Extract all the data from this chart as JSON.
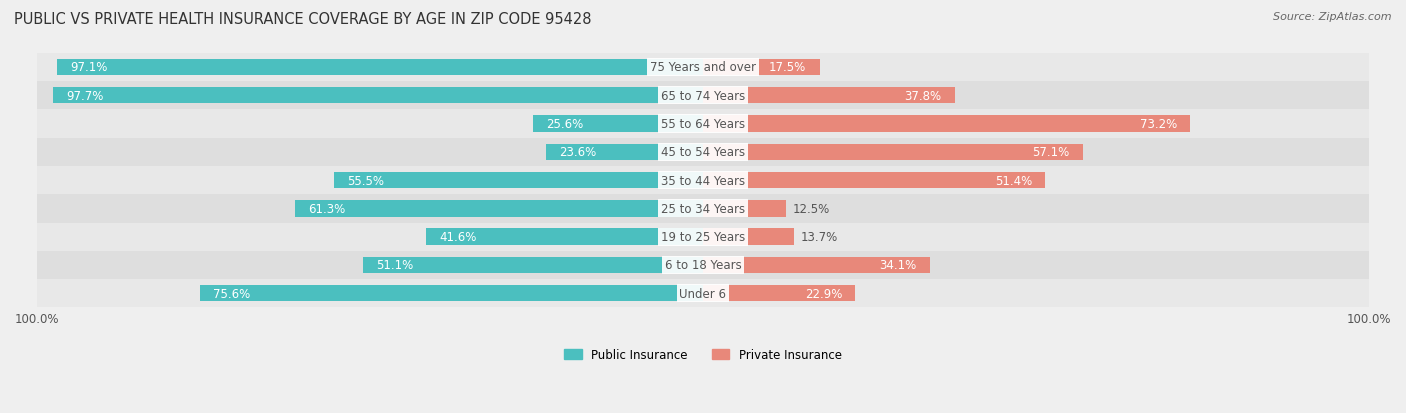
{
  "title": "PUBLIC VS PRIVATE HEALTH INSURANCE COVERAGE BY AGE IN ZIP CODE 95428",
  "source": "Source: ZipAtlas.com",
  "categories": [
    "Under 6",
    "6 to 18 Years",
    "19 to 25 Years",
    "25 to 34 Years",
    "35 to 44 Years",
    "45 to 54 Years",
    "55 to 64 Years",
    "65 to 74 Years",
    "75 Years and over"
  ],
  "public_values": [
    75.6,
    51.1,
    41.6,
    61.3,
    55.5,
    23.6,
    25.6,
    97.7,
    97.1
  ],
  "private_values": [
    22.9,
    34.1,
    13.7,
    12.5,
    51.4,
    57.1,
    73.2,
    37.8,
    17.5
  ],
  "public_color": "#4BBFBF",
  "private_color": "#E8887A",
  "background_color": "#efefef",
  "row_colors": [
    "#e8e8e8",
    "#dedede"
  ],
  "bar_height": 0.58,
  "max_value": 100.0,
  "title_fontsize": 10.5,
  "label_fontsize": 8.5,
  "source_fontsize": 8,
  "legend_fontsize": 8.5,
  "value_label_color_inside": "white",
  "value_label_color_outside": "#555555",
  "category_label_color": "#555555"
}
